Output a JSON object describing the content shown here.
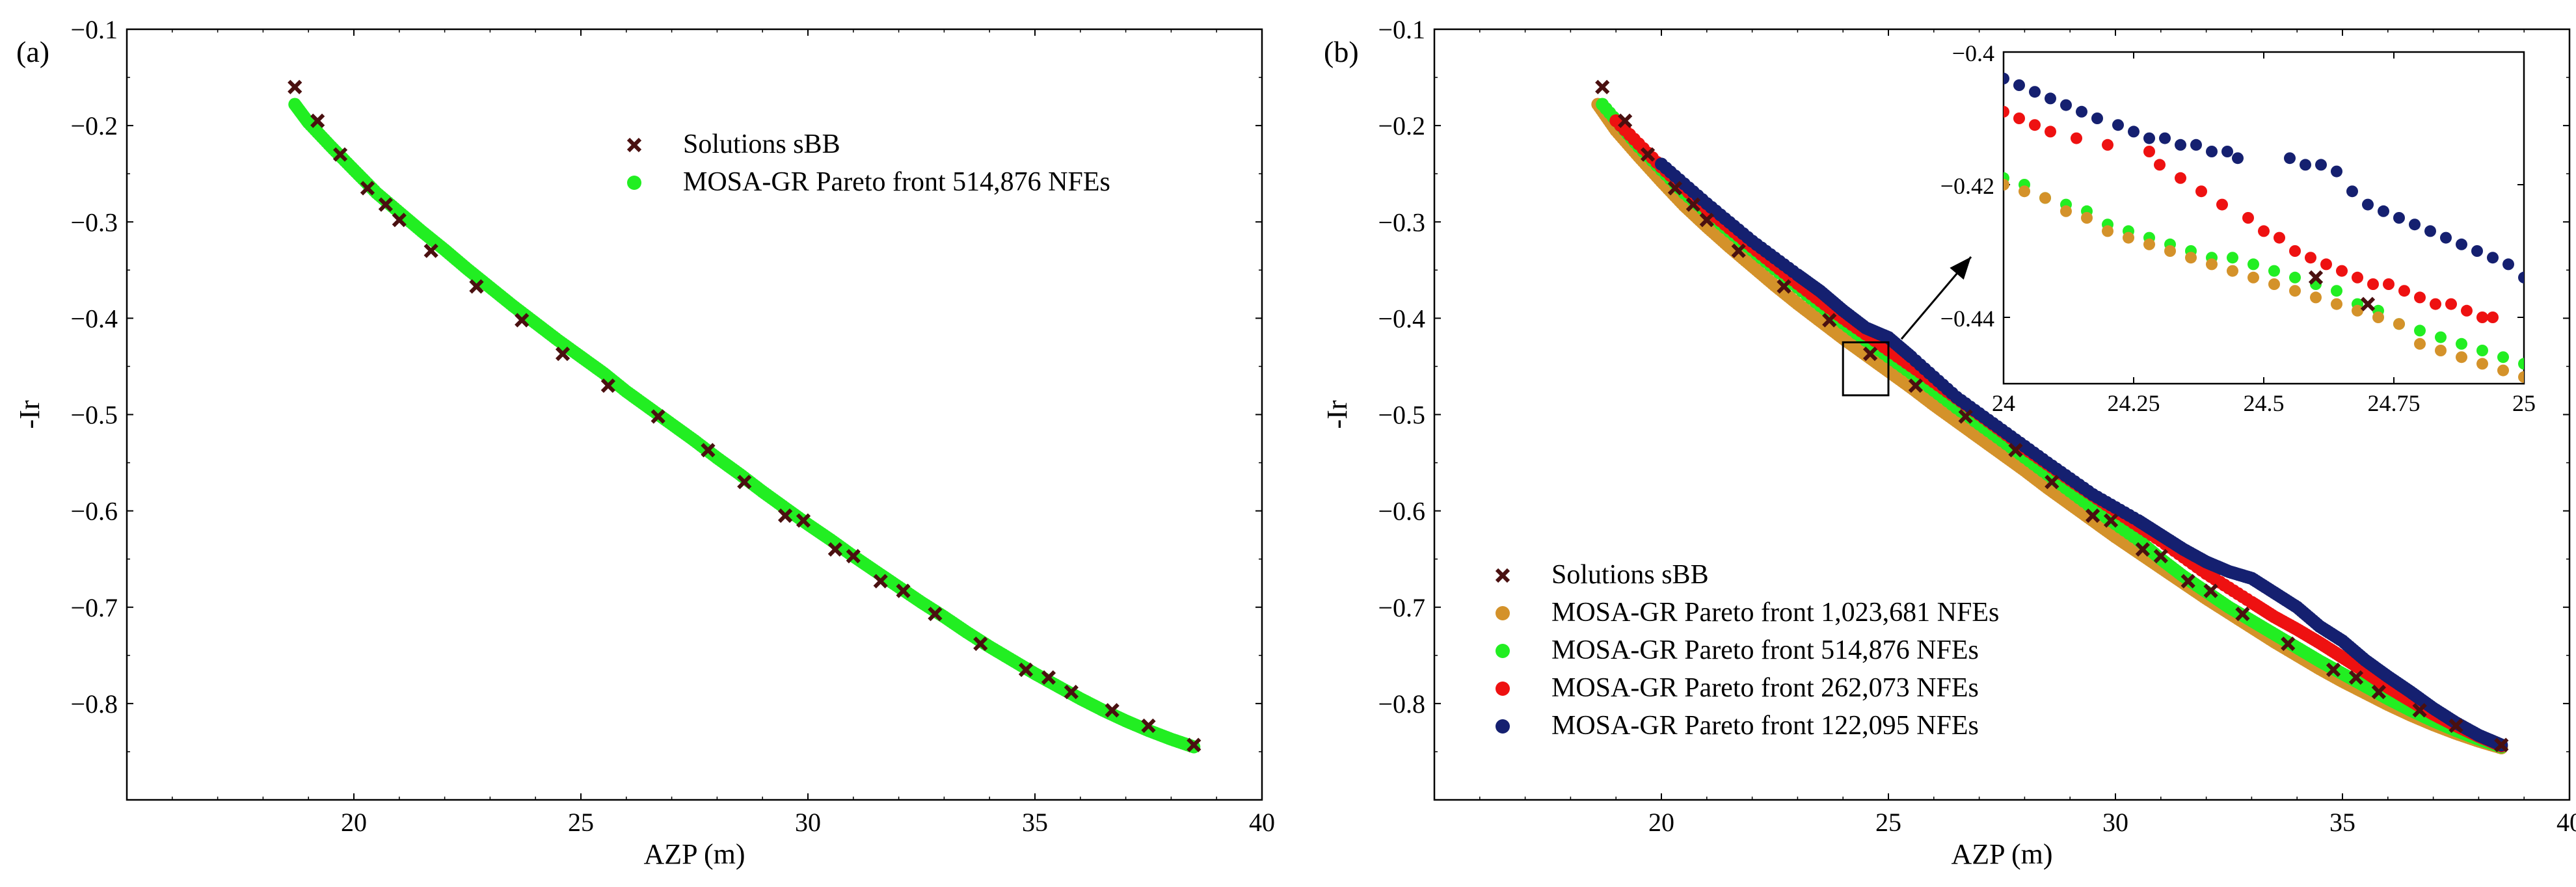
{
  "chart_data": [
    {
      "panel": "(a)",
      "type": "scatter",
      "xlabel": "AZP (m)",
      "ylabel": "-Ir",
      "xlim": [
        15,
        40
      ],
      "ylim": [
        -0.9,
        -0.1
      ],
      "xticks": [
        20,
        25,
        30,
        35,
        40
      ],
      "xtick_labels": [
        "20",
        "25",
        "30",
        "35",
        "40"
      ],
      "yticks": [
        -0.1,
        -0.2,
        -0.3,
        -0.4,
        -0.5,
        -0.6,
        -0.7,
        -0.8
      ],
      "ytick_labels": [
        "−0.1",
        "−0.2",
        "−0.3",
        "−0.4",
        "−0.5",
        "−0.6",
        "−0.7",
        "−0.8"
      ],
      "legend_position": "top-center",
      "series": [
        {
          "name": "Solutions sBB",
          "marker": "x",
          "color": "#4a1010",
          "x": [
            18.7,
            19.2,
            19.7,
            20.3,
            20.7,
            21.0,
            21.7,
            22.7,
            23.7,
            24.6,
            25.6,
            26.7,
            27.8,
            28.6,
            29.5,
            29.9,
            30.6,
            31.0,
            31.6,
            32.1,
            32.8,
            33.8,
            34.8,
            35.3,
            35.8,
            36.7,
            37.5,
            38.5
          ],
          "y": [
            -0.16,
            -0.195,
            -0.23,
            -0.265,
            -0.282,
            -0.298,
            -0.33,
            -0.367,
            -0.402,
            -0.437,
            -0.47,
            -0.502,
            -0.537,
            -0.57,
            -0.605,
            -0.61,
            -0.64,
            -0.647,
            -0.673,
            -0.683,
            -0.707,
            -0.738,
            -0.765,
            -0.773,
            -0.788,
            -0.807,
            -0.823,
            -0.843
          ]
        },
        {
          "name": "MOSA-GR Pareto front 514,876 NFEs",
          "marker": "o",
          "color": "#22ee22",
          "x": [
            18.7,
            19.0,
            19.5,
            20.0,
            20.5,
            21.0,
            21.5,
            22.0,
            22.5,
            23.0,
            23.5,
            24.0,
            24.5,
            25.0,
            25.5,
            26.0,
            26.5,
            27.0,
            27.5,
            28.0,
            28.5,
            29.0,
            29.5,
            30.0,
            30.5,
            31.0,
            31.5,
            32.0,
            32.5,
            33.0,
            33.5,
            34.0,
            34.5,
            35.0,
            35.5,
            36.0,
            36.5,
            37.0,
            37.5,
            38.0,
            38.5
          ],
          "y": [
            -0.178,
            -0.197,
            -0.222,
            -0.246,
            -0.27,
            -0.29,
            -0.31,
            -0.329,
            -0.349,
            -0.368,
            -0.387,
            -0.405,
            -0.423,
            -0.44,
            -0.457,
            -0.476,
            -0.493,
            -0.51,
            -0.527,
            -0.545,
            -0.562,
            -0.58,
            -0.597,
            -0.614,
            -0.63,
            -0.647,
            -0.663,
            -0.679,
            -0.695,
            -0.71,
            -0.726,
            -0.741,
            -0.755,
            -0.769,
            -0.782,
            -0.795,
            -0.807,
            -0.818,
            -0.828,
            -0.837,
            -0.845
          ]
        }
      ]
    },
    {
      "panel": "(b)",
      "type": "scatter",
      "xlabel": "AZP (m)",
      "ylabel": "-Ir",
      "xlim": [
        15,
        40
      ],
      "ylim": [
        -0.9,
        -0.1
      ],
      "xticks": [
        20,
        25,
        30,
        35,
        40
      ],
      "xtick_labels": [
        "20",
        "25",
        "30",
        "35",
        "40"
      ],
      "yticks": [
        -0.1,
        -0.2,
        -0.3,
        -0.4,
        -0.5,
        -0.6,
        -0.7,
        -0.8
      ],
      "ytick_labels": [
        "−0.1",
        "−0.2",
        "−0.3",
        "−0.4",
        "−0.5",
        "−0.6",
        "−0.7",
        "−0.8"
      ],
      "legend_position": "bottom-left",
      "zoom_box": {
        "x": [
          24,
          25
        ],
        "y": [
          -0.48,
          -0.425
        ]
      },
      "series": [
        {
          "name": "Solutions sBB",
          "marker": "x",
          "color": "#4a1010",
          "x": [
            18.7,
            19.2,
            19.7,
            20.3,
            20.7,
            21.0,
            21.7,
            22.7,
            23.7,
            24.6,
            25.6,
            26.7,
            27.8,
            28.6,
            29.5,
            29.9,
            30.6,
            31.0,
            31.6,
            32.1,
            32.8,
            33.8,
            34.8,
            35.3,
            35.8,
            36.7,
            37.5,
            38.5
          ],
          "y": [
            -0.16,
            -0.195,
            -0.23,
            -0.265,
            -0.282,
            -0.298,
            -0.33,
            -0.367,
            -0.402,
            -0.437,
            -0.47,
            -0.502,
            -0.537,
            -0.57,
            -0.605,
            -0.61,
            -0.64,
            -0.647,
            -0.673,
            -0.683,
            -0.707,
            -0.738,
            -0.765,
            -0.773,
            -0.788,
            -0.807,
            -0.823,
            -0.843
          ]
        },
        {
          "name": "MOSA-GR Pareto front 1,023,681 NFEs",
          "marker": "o",
          "color": "#d4922a",
          "x": [
            18.6,
            19.0,
            19.5,
            20.0,
            20.5,
            21.0,
            21.5,
            22.0,
            22.5,
            23.0,
            23.5,
            24.0,
            24.5,
            25.0,
            25.5,
            26.0,
            26.5,
            27.0,
            27.5,
            28.0,
            28.5,
            29.0,
            29.5,
            30.0,
            30.5,
            31.0,
            31.5,
            32.0,
            32.5,
            33.0,
            33.5,
            34.0,
            34.5,
            35.0,
            35.5,
            36.0,
            36.5,
            37.0,
            37.5,
            38.0,
            38.5
          ],
          "y": [
            -0.178,
            -0.205,
            -0.232,
            -0.258,
            -0.283,
            -0.305,
            -0.326,
            -0.346,
            -0.366,
            -0.385,
            -0.403,
            -0.421,
            -0.438,
            -0.455,
            -0.472,
            -0.49,
            -0.507,
            -0.524,
            -0.541,
            -0.558,
            -0.576,
            -0.593,
            -0.61,
            -0.627,
            -0.643,
            -0.659,
            -0.675,
            -0.691,
            -0.706,
            -0.721,
            -0.736,
            -0.75,
            -0.764,
            -0.777,
            -0.789,
            -0.801,
            -0.812,
            -0.822,
            -0.831,
            -0.839,
            -0.846
          ]
        },
        {
          "name": "MOSA-GR Pareto front 514,876 NFEs",
          "marker": "o",
          "color": "#22ee22",
          "x": [
            18.7,
            19.5,
            20.5,
            21.5,
            22.5,
            23.5,
            24.5,
            25.5,
            26.5,
            27.5,
            28.5,
            29.5,
            30.5,
            31.0,
            31.5,
            32.0,
            32.5,
            33.0,
            33.5,
            34.0,
            34.5,
            35.0,
            35.5,
            36.0,
            36.5,
            37.0,
            37.5,
            38.0,
            38.5
          ],
          "y": [
            -0.178,
            -0.222,
            -0.27,
            -0.31,
            -0.349,
            -0.387,
            -0.423,
            -0.457,
            -0.493,
            -0.527,
            -0.562,
            -0.597,
            -0.63,
            -0.65,
            -0.668,
            -0.684,
            -0.7,
            -0.714,
            -0.728,
            -0.742,
            -0.756,
            -0.769,
            -0.782,
            -0.795,
            -0.807,
            -0.818,
            -0.828,
            -0.837,
            -0.845
          ]
        },
        {
          "name": "MOSA-GR Pareto front 262,073 NFEs",
          "marker": "o",
          "color": "#ee1111",
          "x": [
            19.0,
            20.0,
            21.0,
            22.0,
            23.0,
            24.0,
            25.0,
            26.0,
            27.0,
            28.0,
            29.0,
            30.0,
            31.0,
            32.0,
            33.0,
            33.5,
            34.0,
            34.5,
            35.0,
            35.5,
            36.0,
            36.5,
            37.0,
            37.5,
            38.0,
            38.5
          ],
          "y": [
            -0.195,
            -0.243,
            -0.287,
            -0.326,
            -0.364,
            -0.4,
            -0.433,
            -0.466,
            -0.5,
            -0.535,
            -0.568,
            -0.6,
            -0.631,
            -0.665,
            -0.695,
            -0.71,
            -0.723,
            -0.737,
            -0.752,
            -0.767,
            -0.783,
            -0.797,
            -0.811,
            -0.823,
            -0.834,
            -0.844
          ]
        },
        {
          "name": "MOSA-GR Pareto front 122,095 NFEs",
          "marker": "o",
          "color": "#152070",
          "x": [
            20.0,
            21.0,
            22.0,
            23.0,
            23.5,
            24.0,
            24.5,
            25.0,
            25.5,
            26.5,
            27.5,
            28.5,
            29.5,
            30.5,
            31.0,
            31.5,
            32.0,
            32.5,
            33.0,
            33.5,
            34.0,
            34.5,
            35.0,
            35.5,
            36.0,
            36.5,
            37.0,
            37.5,
            38.0,
            38.5
          ],
          "y": [
            -0.24,
            -0.281,
            -0.32,
            -0.355,
            -0.372,
            -0.392,
            -0.41,
            -0.42,
            -0.44,
            -0.482,
            -0.516,
            -0.55,
            -0.583,
            -0.61,
            -0.625,
            -0.64,
            -0.653,
            -0.663,
            -0.67,
            -0.685,
            -0.7,
            -0.72,
            -0.735,
            -0.755,
            -0.772,
            -0.788,
            -0.805,
            -0.82,
            -0.833,
            -0.843
          ]
        }
      ]
    },
    {
      "panel": "inset",
      "type": "scatter",
      "xlabel": "",
      "ylabel": "",
      "xlim": [
        24,
        25
      ],
      "ylim": [
        -0.45,
        -0.4
      ],
      "xticks": [
        24,
        24.25,
        24.5,
        24.75,
        25
      ],
      "xtick_labels": [
        "24",
        "24.25",
        "24.5",
        "24.75",
        "25"
      ],
      "yticks": [
        -0.4,
        -0.42,
        -0.44
      ],
      "ytick_labels": [
        "−0.4",
        "−0.42",
        "−0.44"
      ],
      "series": [
        {
          "name": "MOSA-GR Pareto front 122,095 NFEs",
          "color": "#152070",
          "x": [
            24.0,
            24.03,
            24.06,
            24.09,
            24.12,
            24.15,
            24.18,
            24.22,
            24.25,
            24.28,
            24.31,
            24.34,
            24.37,
            24.4,
            24.43,
            24.45,
            24.55,
            24.58,
            24.61,
            24.64,
            24.67,
            24.7,
            24.73,
            24.76,
            24.79,
            24.82,
            24.85,
            24.88,
            24.91,
            24.94,
            24.97,
            25.0
          ],
          "y": [
            -0.404,
            -0.405,
            -0.406,
            -0.407,
            -0.408,
            -0.409,
            -0.41,
            -0.411,
            -0.412,
            -0.413,
            -0.413,
            -0.414,
            -0.414,
            -0.415,
            -0.415,
            -0.416,
            -0.416,
            -0.417,
            -0.417,
            -0.418,
            -0.421,
            -0.423,
            -0.424,
            -0.425,
            -0.426,
            -0.427,
            -0.428,
            -0.429,
            -0.43,
            -0.431,
            -0.432,
            -0.434
          ]
        },
        {
          "name": "MOSA-GR Pareto front 262,073 NFEs",
          "color": "#ee1111",
          "x": [
            24.0,
            24.03,
            24.06,
            24.09,
            24.14,
            24.2,
            24.28,
            24.3,
            24.34,
            24.38,
            24.42,
            24.47,
            24.5,
            24.53,
            24.56,
            24.59,
            24.62,
            24.65,
            24.68,
            24.71,
            24.74,
            24.77,
            24.8,
            24.83,
            24.86,
            24.89,
            24.92,
            24.94
          ],
          "y": [
            -0.409,
            -0.41,
            -0.411,
            -0.412,
            -0.413,
            -0.414,
            -0.415,
            -0.417,
            -0.419,
            -0.421,
            -0.423,
            -0.425,
            -0.427,
            -0.428,
            -0.43,
            -0.431,
            -0.432,
            -0.433,
            -0.434,
            -0.435,
            -0.435,
            -0.436,
            -0.437,
            -0.438,
            -0.438,
            -0.439,
            -0.44,
            -0.44
          ]
        },
        {
          "name": "MOSA-GR Pareto front 514,876 NFEs",
          "color": "#22ee22",
          "x": [
            24.0,
            24.04,
            24.08,
            24.12,
            24.16,
            24.2,
            24.24,
            24.28,
            24.32,
            24.36,
            24.4,
            24.44,
            24.48,
            24.52,
            24.56,
            24.6,
            24.64,
            24.68,
            24.72,
            24.76,
            24.8,
            24.84,
            24.88,
            24.92,
            24.96,
            25.0
          ],
          "y": [
            -0.419,
            -0.42,
            -0.422,
            -0.423,
            -0.424,
            -0.426,
            -0.427,
            -0.428,
            -0.429,
            -0.43,
            -0.431,
            -0.431,
            -0.432,
            -0.433,
            -0.434,
            -0.435,
            -0.436,
            -0.438,
            -0.439,
            -0.441,
            -0.442,
            -0.443,
            -0.444,
            -0.445,
            -0.446,
            -0.447
          ]
        },
        {
          "name": "MOSA-GR Pareto front 1,023,681 NFEs",
          "color": "#d4922a",
          "x": [
            24.0,
            24.04,
            24.08,
            24.12,
            24.16,
            24.2,
            24.24,
            24.28,
            24.32,
            24.36,
            24.4,
            24.44,
            24.48,
            24.52,
            24.56,
            24.6,
            24.64,
            24.68,
            24.72,
            24.76,
            24.8,
            24.84,
            24.88,
            24.92,
            24.96,
            25.0
          ],
          "y": [
            -0.42,
            -0.421,
            -0.422,
            -0.424,
            -0.425,
            -0.427,
            -0.428,
            -0.429,
            -0.43,
            -0.431,
            -0.432,
            -0.433,
            -0.434,
            -0.435,
            -0.436,
            -0.437,
            -0.438,
            -0.439,
            -0.44,
            -0.441,
            -0.444,
            -0.445,
            -0.446,
            -0.447,
            -0.448,
            -0.449
          ]
        },
        {
          "name": "Solutions sBB",
          "color": "#4a1010",
          "marker": "x",
          "x": [
            24.6,
            24.7
          ],
          "y": [
            -0.434,
            -0.438
          ]
        }
      ]
    }
  ]
}
